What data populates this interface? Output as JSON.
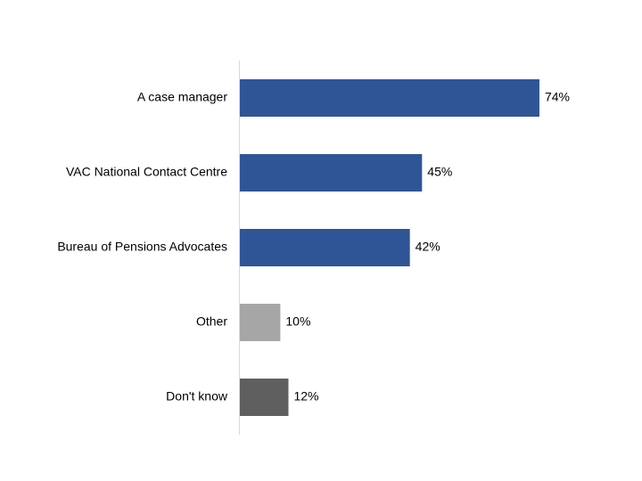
{
  "chart_data": {
    "type": "bar",
    "orientation": "horizontal",
    "categories": [
      "A case manager",
      "VAC National Contact Centre",
      "Bureau of Pensions Advocates",
      "Other",
      "Don't know"
    ],
    "values": [
      74,
      45,
      42,
      10,
      12
    ],
    "value_labels": [
      "74%",
      "45%",
      "42%",
      "10%",
      "12%"
    ],
    "colors": [
      "#2f5597",
      "#2f5597",
      "#2f5597",
      "#a6a6a6",
      "#5f5f5f"
    ]
  }
}
